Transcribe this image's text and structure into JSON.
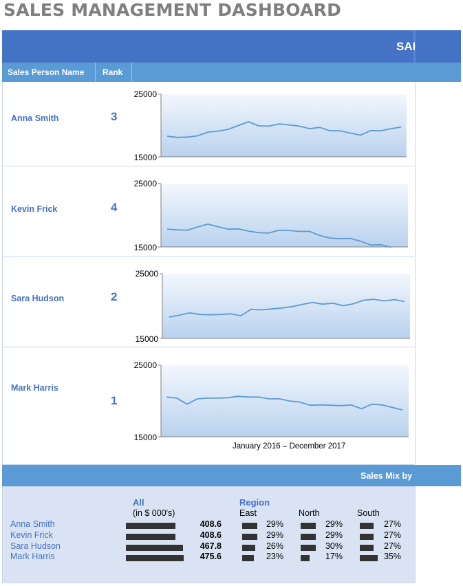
{
  "title": "SALES MANAGEMENT DASHBOARD",
  "banner_text": "SALES",
  "columns": {
    "name": "Sales Person Name",
    "rank": "Rank"
  },
  "x_axis_label": "January 2016 – December 2017",
  "colors": {
    "banner": "#4472c4",
    "header": "#5b9bd5",
    "line": "#5b9bd5",
    "text_accent": "#4472c4",
    "bar": "#333333"
  },
  "chart_data": [
    {
      "type": "line",
      "series_name": "Anna Smith",
      "ylim": [
        15000,
        25000
      ],
      "yticks": [
        "25000",
        "15000"
      ],
      "values": [
        18300,
        18100,
        18150,
        18350,
        18950,
        19100,
        19400,
        20000,
        20600,
        19950,
        19900,
        20250,
        20100,
        19900,
        19500,
        19700,
        19150,
        19150,
        18800,
        18450,
        19200,
        19150,
        19500,
        19750
      ]
    },
    {
      "type": "line",
      "series_name": "Kevin Frick",
      "ylim": [
        15000,
        25000
      ],
      "yticks": [
        "25000",
        "15000"
      ],
      "values": [
        17800,
        17700,
        17650,
        18150,
        18600,
        18200,
        17800,
        17850,
        17500,
        17250,
        17200,
        17650,
        17600,
        17450,
        17450,
        16800,
        16400,
        16300,
        16350,
        15900,
        15300,
        15350,
        14950,
        null
      ]
    },
    {
      "type": "line",
      "series_name": "Sara Hudson",
      "ylim": [
        15000,
        25000
      ],
      "yticks": [
        "25000",
        "15000"
      ],
      "values": [
        18300,
        18600,
        18950,
        18700,
        18650,
        18700,
        18800,
        18500,
        19500,
        19400,
        19550,
        19700,
        19900,
        20250,
        20550,
        20300,
        20450,
        20050,
        20350,
        20900,
        21050,
        20800,
        21000,
        20700
      ]
    },
    {
      "type": "line",
      "series_name": "Mark Harris",
      "ylim": [
        15000,
        25000
      ],
      "yticks": [
        "25000",
        "15000"
      ],
      "values": [
        20550,
        20400,
        19550,
        20300,
        20400,
        20400,
        20450,
        20650,
        20550,
        20550,
        20300,
        20300,
        20000,
        19850,
        19400,
        19450,
        19400,
        19350,
        19450,
        18900,
        19550,
        19450,
        19100,
        18750
      ]
    }
  ],
  "rows": [
    {
      "name": "Anna Smith",
      "rank": "3"
    },
    {
      "name": "Kevin Frick",
      "rank": "4"
    },
    {
      "name": "Sara Hudson",
      "rank": "2"
    },
    {
      "name": "Mark Harris",
      "rank": "1"
    }
  ],
  "mix": {
    "header": "Sales Mix by",
    "all_label": "All",
    "all_sub": "(in $ 000's)",
    "region_label": "Region",
    "regions": [
      "East",
      "North",
      "South"
    ],
    "max_total": 475.6,
    "rows": [
      {
        "name": "Anna Smith",
        "total": 408.6,
        "total_text": "408.6",
        "east": 29,
        "east_text": "29%",
        "north": 29,
        "north_text": "29%",
        "south": 27,
        "south_text": "27%"
      },
      {
        "name": "Kevin Frick",
        "total": 408.6,
        "total_text": "408.6",
        "east": 29,
        "east_text": "29%",
        "north": 29,
        "north_text": "29%",
        "south": 27,
        "south_text": "27%"
      },
      {
        "name": "Sara Hudson",
        "total": 467.8,
        "total_text": "467.8",
        "east": 26,
        "east_text": "26%",
        "north": 30,
        "north_text": "30%",
        "south": 27,
        "south_text": "27%"
      },
      {
        "name": "Mark Harris",
        "total": 475.6,
        "total_text": "475.6",
        "east": 23,
        "east_text": "23%",
        "north": 17,
        "north_text": "17%",
        "south": 35,
        "south_text": "35%"
      }
    ]
  }
}
